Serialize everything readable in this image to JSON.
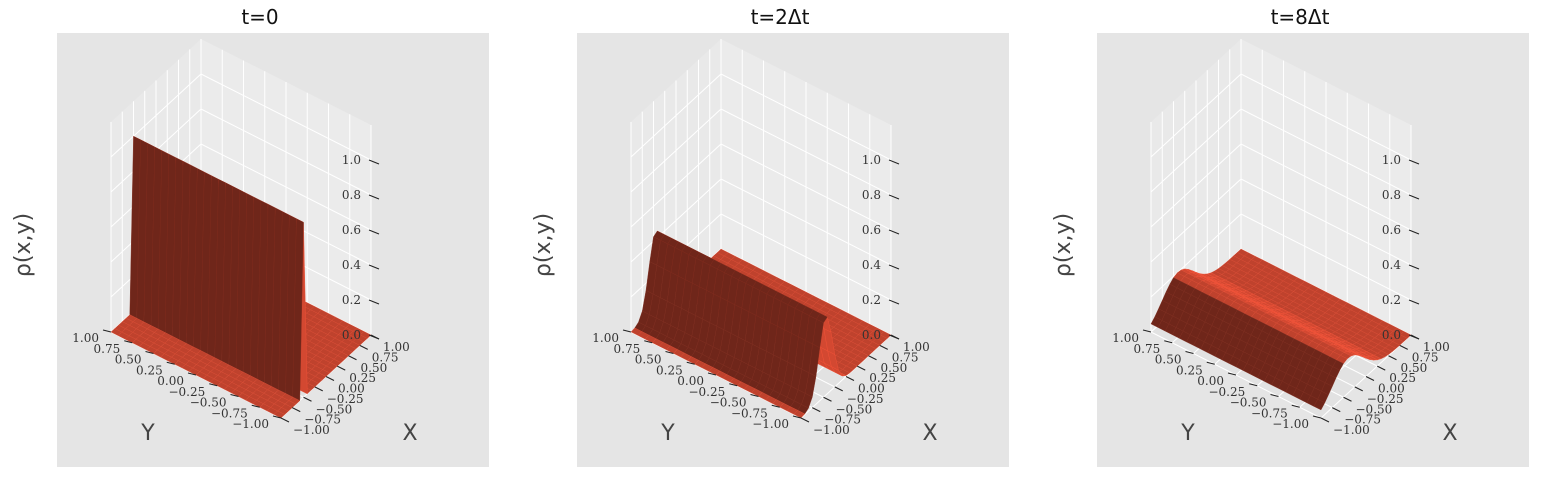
{
  "colors": {
    "pane_bg": "#e5e5e5",
    "surface": "#c9452f",
    "surface_dark": "#6b2418",
    "grid": "#ffffff",
    "tick_text": "#333333"
  },
  "chart_data": [
    {
      "type": "surface3d",
      "title": "t=0",
      "xlabel": "X",
      "ylabel": "Y",
      "zlabel": "ρ(x,y)",
      "x_ticks": [
        "−1.00",
        "−0.75",
        "−0.50",
        "−0.25",
        "0.00",
        "0.25",
        "0.50",
        "0.75",
        "1.00"
      ],
      "y_ticks": [
        "−1.00",
        "−0.75",
        "−0.50",
        "−0.25",
        "0.00",
        "0.25",
        "0.50",
        "0.75",
        "1.00"
      ],
      "z_ticks": [
        "0.0",
        "0.2",
        "0.4",
        "0.6",
        "0.8",
        "1.0"
      ],
      "xlim": [
        -1,
        1
      ],
      "ylim": [
        -1,
        1
      ],
      "zlim": [
        0,
        1
      ],
      "grid": true,
      "density_profile": {
        "shape": "ridge",
        "peak": 1.0,
        "center_x": 0.5,
        "width": 0.05
      }
    },
    {
      "type": "surface3d",
      "title": "t=2Δt",
      "xlabel": "X",
      "ylabel": "Y",
      "zlabel": "ρ(x,y)",
      "x_ticks": [
        "−1.00",
        "−0.75",
        "−0.50",
        "−0.25",
        "0.00",
        "0.25",
        "0.50",
        "0.75",
        "1.00"
      ],
      "y_ticks": [
        "−1.00",
        "−0.75",
        "−0.50",
        "−0.25",
        "0.00",
        "0.25",
        "0.50",
        "0.75",
        "1.00"
      ],
      "z_ticks": [
        "0.0",
        "0.2",
        "0.4",
        "0.6",
        "0.8",
        "1.0"
      ],
      "xlim": [
        -1,
        1
      ],
      "ylim": [
        -1,
        1
      ],
      "zlim": [
        0,
        1
      ],
      "grid": true,
      "density_profile": {
        "shape": "ridge",
        "peak": 0.45,
        "center_x": 0.45,
        "width": 0.15
      }
    },
    {
      "type": "surface3d",
      "title": "t=8Δt",
      "xlabel": "X",
      "ylabel": "Y",
      "zlabel": "ρ(x,y)",
      "x_ticks": [
        "−1.00",
        "−0.75",
        "−0.50",
        "−0.25",
        "0.00",
        "0.25",
        "0.50",
        "0.75",
        "1.00"
      ],
      "y_ticks": [
        "−1.00",
        "−0.75",
        "−0.50",
        "−0.25",
        "0.00",
        "0.25",
        "0.50",
        "0.75",
        "1.00"
      ],
      "z_ticks": [
        "0.0",
        "0.2",
        "0.4",
        "0.6",
        "0.8",
        "1.0"
      ],
      "xlim": [
        -1,
        1
      ],
      "ylim": [
        -1,
        1
      ],
      "zlim": [
        0,
        1
      ],
      "grid": true,
      "density_profile": {
        "shape": "ridge",
        "peak": 0.2,
        "center_x": 0.4,
        "width": 0.35
      }
    }
  ]
}
